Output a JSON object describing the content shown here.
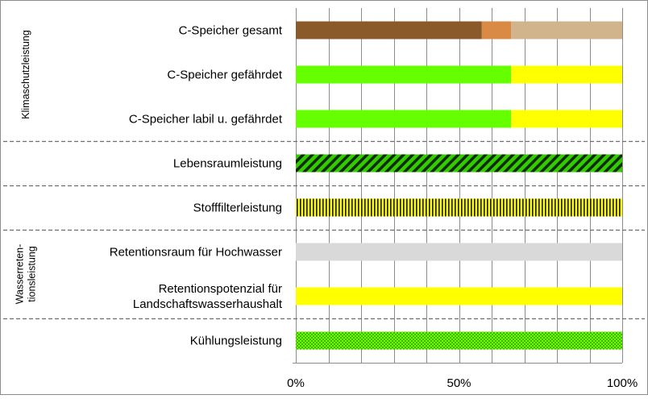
{
  "chart_data": {
    "type": "bar",
    "orientation": "horizontal",
    "stacked": true,
    "xlim": [
      0,
      100
    ],
    "xticks": [
      0,
      50,
      100
    ],
    "xtick_labels": [
      "0%",
      "50%",
      "100%"
    ],
    "grid": true,
    "groups": [
      {
        "label": "Klimaschutzleistung",
        "lines": [
          "Klimaschutzleistung"
        ],
        "rows": [
          0,
          1,
          2
        ]
      },
      {
        "label": "Wasserreten-tionsleistung",
        "lines": [
          "Wasserreten-",
          "tionsleistung"
        ],
        "rows": [
          5,
          6
        ]
      }
    ],
    "categories": [
      {
        "label": "C-Speicher gesamt",
        "lines": [
          "C-Speicher gesamt"
        ],
        "segments": [
          {
            "value": 57,
            "color": "#8B5A2B",
            "pattern": "solid"
          },
          {
            "value": 9,
            "color": "#D98B45",
            "pattern": "solid"
          },
          {
            "value": 34,
            "color": "#D2B48C",
            "pattern": "solid"
          }
        ]
      },
      {
        "label": "C-Speicher gefährdet",
        "lines": [
          "C-Speicher gefährdet"
        ],
        "segments": [
          {
            "value": 66,
            "color": "#66FF00",
            "pattern": "solid"
          },
          {
            "value": 34,
            "color": "#FFFF00",
            "pattern": "solid"
          }
        ]
      },
      {
        "label": "C-Speicher labil u. gefährdet",
        "lines": [
          "C-Speicher labil u. gefährdet"
        ],
        "segments": [
          {
            "value": 66,
            "color": "#66FF00",
            "pattern": "solid"
          },
          {
            "value": 34,
            "color": "#FFFF00",
            "pattern": "solid"
          }
        ]
      },
      {
        "label": "Lebensraumleistung",
        "lines": [
          "Lebensraumleistung"
        ],
        "segments": [
          {
            "value": 100,
            "color": "#33CC00",
            "pattern": "diagonal"
          }
        ]
      },
      {
        "label": "Stofffilterleistung",
        "lines": [
          "Stofffilterleistung"
        ],
        "segments": [
          {
            "value": 100,
            "color": "#FFFF00",
            "pattern": "vertical"
          }
        ]
      },
      {
        "label": "Retentionsraum für Hochwasser",
        "lines": [
          "Retentionsraum für Hochwasser"
        ],
        "segments": [
          {
            "value": 100,
            "color": "#D9D9D9",
            "pattern": "solid"
          }
        ]
      },
      {
        "label": "Retentionspotenzial für Landschaftswasserhaushalt",
        "lines": [
          "Retentionspotenzial für",
          "Landschaftswasserhaushalt"
        ],
        "segments": [
          {
            "value": 100,
            "color": "#FFFF00",
            "pattern": "solid"
          }
        ]
      },
      {
        "label": "Kühlungsleistung",
        "lines": [
          "Kühlungsleistung"
        ],
        "segments": [
          {
            "value": 100,
            "color": "#66FF00",
            "pattern": "dots"
          }
        ]
      }
    ],
    "separators_after_rows": [
      2,
      3,
      4,
      6
    ]
  }
}
